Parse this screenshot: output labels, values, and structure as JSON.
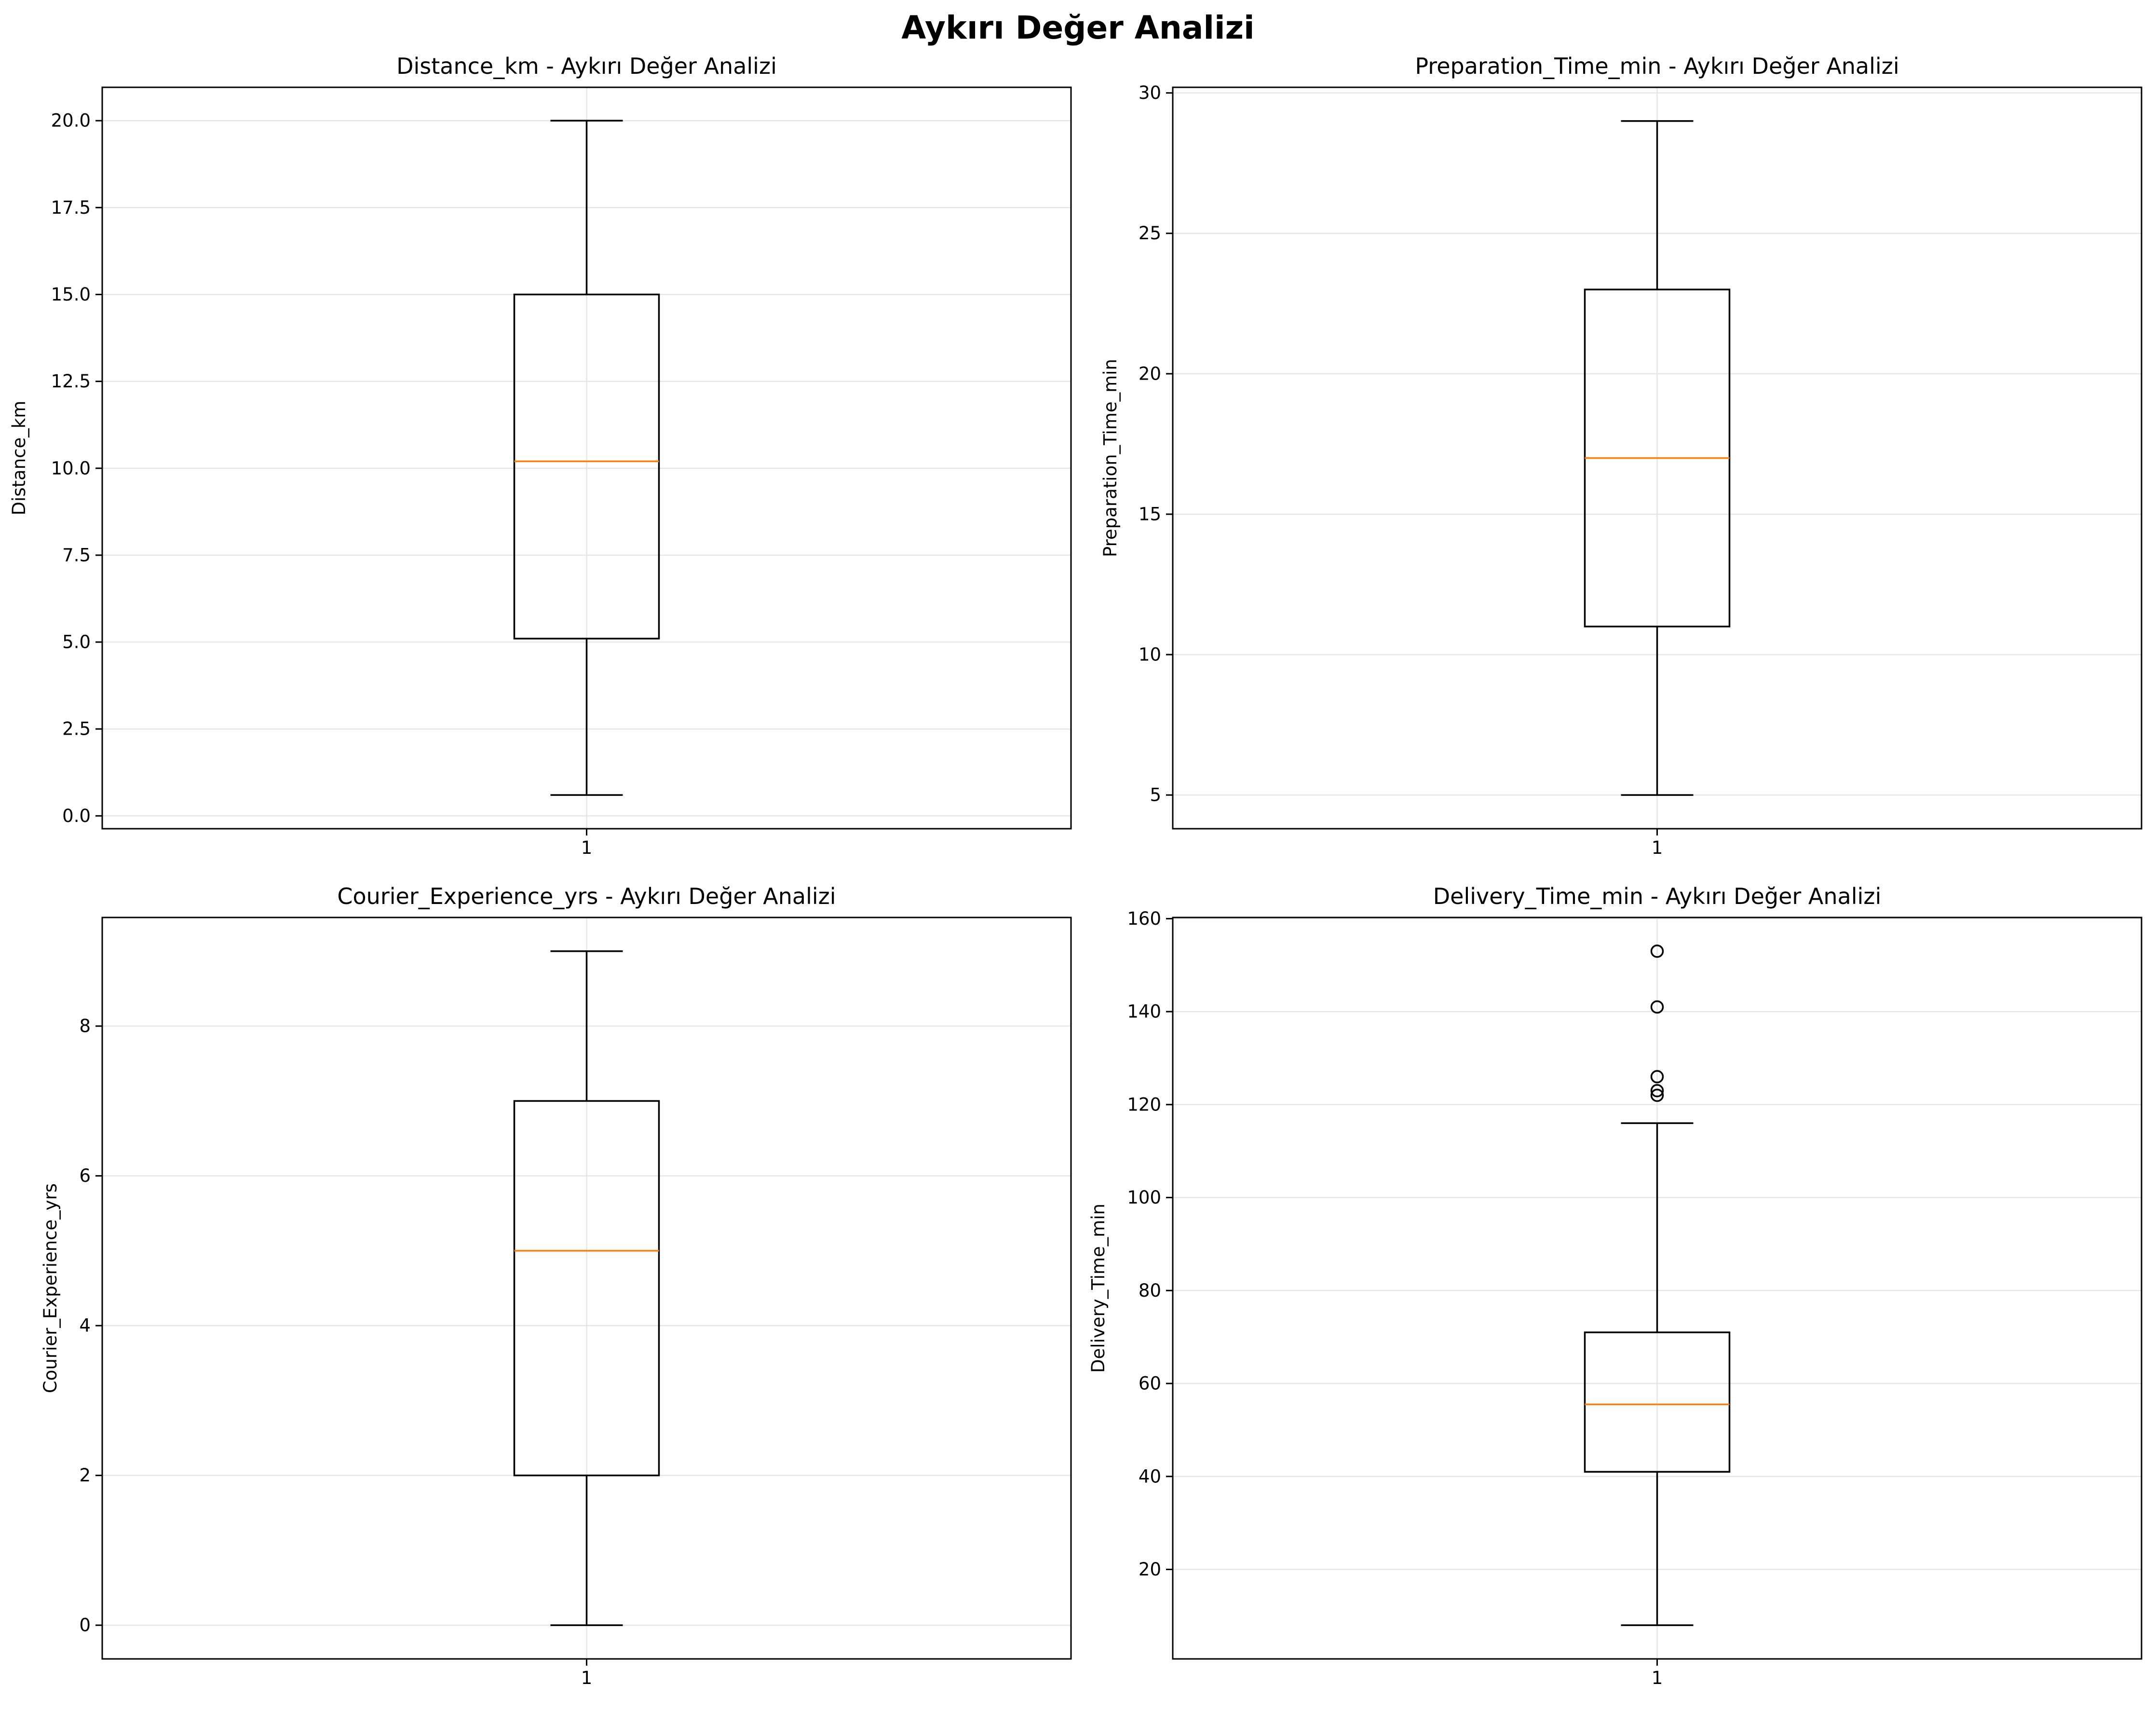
{
  "figure": {
    "title": "Aykırı Değer Analizi"
  },
  "chart_data": [
    {
      "type": "boxplot",
      "title": "Distance_km - Aykırı Değer Analizi",
      "xlabel": "",
      "ylabel": "Distance_km",
      "categories": [
        "1"
      ],
      "ylim": [
        -0.37,
        20.96
      ],
      "yticks": [
        0.0,
        2.5,
        5.0,
        7.5,
        10.0,
        12.5,
        15.0,
        17.5,
        20.0
      ],
      "ytick_labels": [
        "0.0",
        "2.5",
        "5.0",
        "7.5",
        "10.0",
        "12.5",
        "15.0",
        "17.5",
        "20.0"
      ],
      "grid": true,
      "box": {
        "whisker_low": 0.6,
        "q1": 5.1,
        "median": 10.2,
        "q3": 15.0,
        "whisker_high": 20.0,
        "outliers": []
      }
    },
    {
      "type": "boxplot",
      "title": "Preparation_Time_min - Aykırı Değer Analizi",
      "xlabel": "",
      "ylabel": "Preparation_Time_min",
      "categories": [
        "1"
      ],
      "ylim": [
        3.8,
        30.2
      ],
      "yticks": [
        5,
        10,
        15,
        20,
        25,
        30
      ],
      "ytick_labels": [
        "5",
        "10",
        "15",
        "20",
        "25",
        "30"
      ],
      "grid": true,
      "box": {
        "whisker_low": 5,
        "q1": 11,
        "median": 17,
        "q3": 23,
        "whisker_high": 29,
        "outliers": []
      }
    },
    {
      "type": "boxplot",
      "title": "Courier_Experience_yrs - Aykırı Değer Analizi",
      "xlabel": "",
      "ylabel": "Courier_Experience_yrs",
      "categories": [
        "1"
      ],
      "ylim": [
        -0.45,
        9.45
      ],
      "yticks": [
        0,
        2,
        4,
        6,
        8
      ],
      "ytick_labels": [
        "0",
        "2",
        "4",
        "6",
        "8"
      ],
      "grid": true,
      "box": {
        "whisker_low": 0,
        "q1": 2,
        "median": 5,
        "q3": 7,
        "whisker_high": 9,
        "outliers": []
      }
    },
    {
      "type": "boxplot",
      "title": "Delivery_Time_min - Aykırı Değer Analizi",
      "xlabel": "",
      "ylabel": "Delivery_Time_min",
      "categories": [
        "1"
      ],
      "ylim": [
        0.75,
        160.25
      ],
      "yticks": [
        20,
        40,
        60,
        80,
        100,
        120,
        140,
        160
      ],
      "ytick_labels": [
        "20",
        "40",
        "60",
        "80",
        "100",
        "120",
        "140",
        "160"
      ],
      "grid": true,
      "box": {
        "whisker_low": 8,
        "q1": 41,
        "median": 55.5,
        "q3": 71,
        "whisker_high": 116,
        "outliers": [
          122,
          123,
          126,
          141,
          153
        ]
      }
    }
  ],
  "colors": {
    "box": "#000000",
    "median": "#ff7f0e",
    "grid": "#e6e6e6",
    "outlier_edge": "#000000"
  }
}
